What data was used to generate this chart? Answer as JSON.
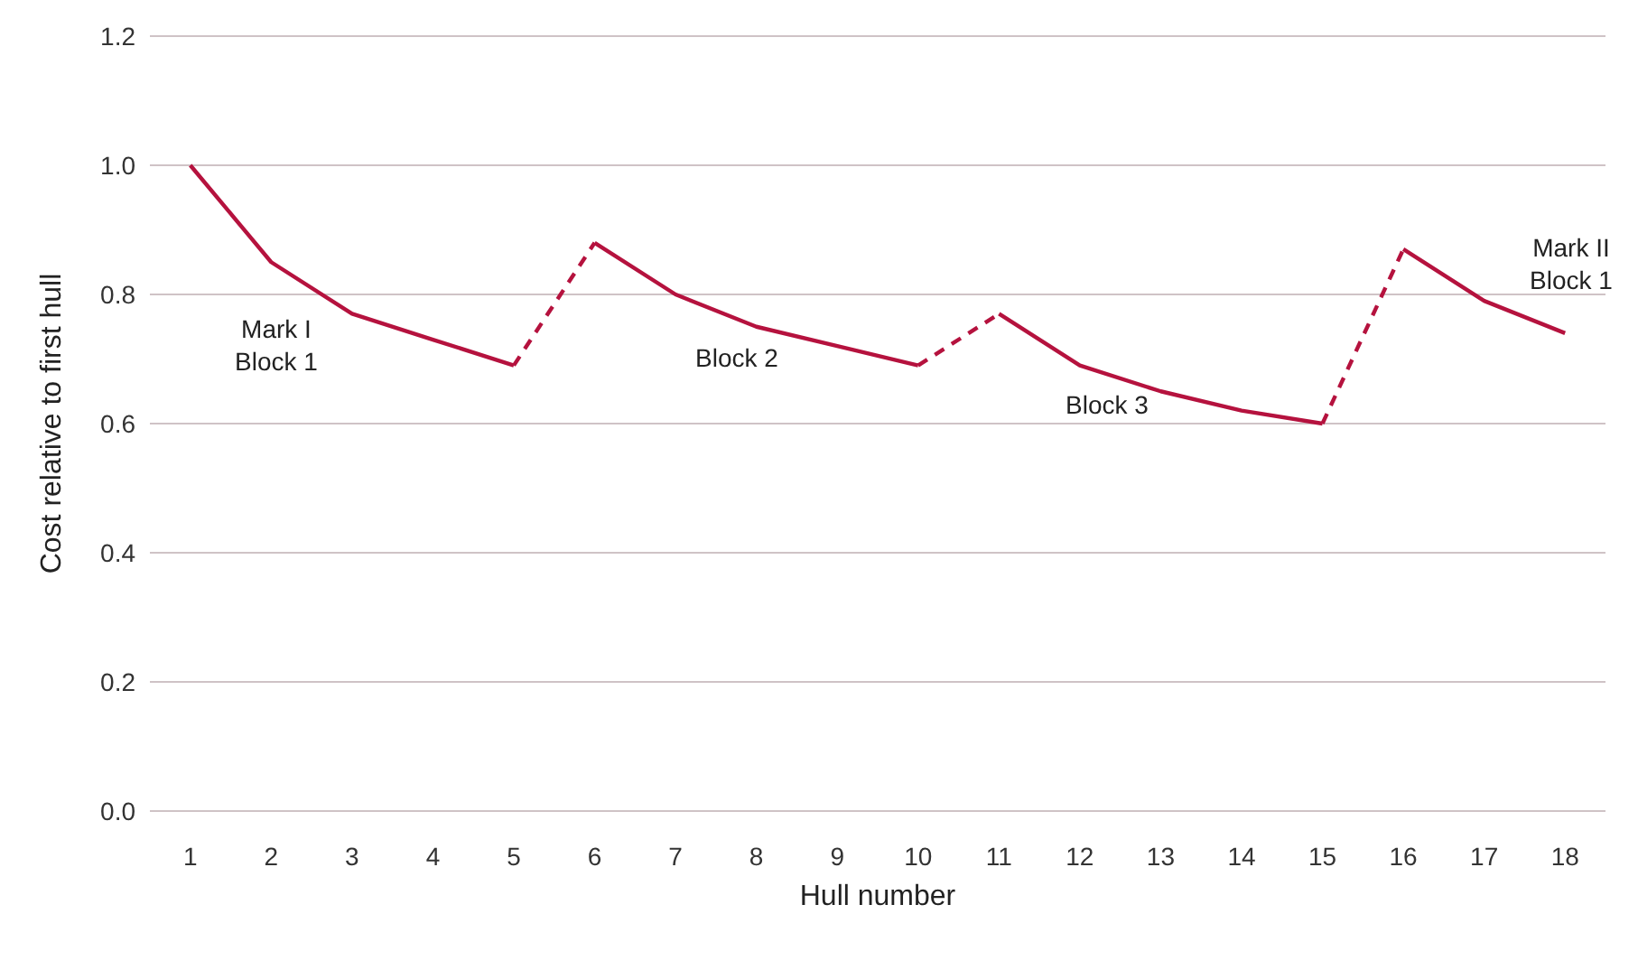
{
  "chart_data": {
    "type": "line",
    "xlabel": "Hull number",
    "ylabel": "Cost relative to first hull",
    "xlim": [
      0.5,
      18.5
    ],
    "xticks": [
      1,
      2,
      3,
      4,
      5,
      6,
      7,
      8,
      9,
      10,
      11,
      12,
      13,
      14,
      15,
      16,
      17,
      18
    ],
    "ylim": [
      0,
      1.2
    ],
    "yticks": [
      {
        "value": 0,
        "label": "0.0"
      },
      {
        "value": 0.2,
        "label": "0.2"
      },
      {
        "value": 0.4,
        "label": "0.4"
      },
      {
        "value": 0.6,
        "label": "0.6"
      },
      {
        "value": 0.8,
        "label": "0.8"
      },
      {
        "value": 1,
        "label": "1.0"
      },
      {
        "value": 1.2,
        "label": "1.2"
      }
    ],
    "grid": "y",
    "marker": "none",
    "series": [
      {
        "color": "#b5123e",
        "line_style": "solid",
        "x": [
          1,
          2,
          3,
          4,
          5
        ],
        "values": [
          1.0,
          0.85,
          0.77,
          0.73,
          0.69
        ]
      },
      {
        "color": "#b5123e",
        "line_style": "dashed",
        "x": [
          5,
          6
        ],
        "values": [
          0.69,
          0.88
        ]
      },
      {
        "color": "#b5123e",
        "line_style": "solid",
        "x": [
          6,
          7,
          8,
          9,
          10
        ],
        "values": [
          0.88,
          0.8,
          0.75,
          0.72,
          0.69
        ]
      },
      {
        "color": "#b5123e",
        "line_style": "dashed",
        "x": [
          10,
          11
        ],
        "values": [
          0.69,
          0.77
        ]
      },
      {
        "color": "#b5123e",
        "line_style": "solid",
        "x": [
          11,
          12,
          13,
          14,
          15
        ],
        "values": [
          0.77,
          0.69,
          0.65,
          0.62,
          0.6
        ]
      },
      {
        "color": "#b5123e",
        "line_style": "dashed",
        "x": [
          15,
          16
        ],
        "values": [
          0.6,
          0.87
        ]
      },
      {
        "color": "#b5123e",
        "line_style": "solid",
        "x": [
          16,
          17,
          18
        ],
        "values": [
          0.87,
          0.79,
          0.74
        ]
      }
    ],
    "annotations": [
      "Mark I\nBlock 1",
      "Block 2",
      "Block 3",
      "Mark II\nBlock 1"
    ]
  }
}
